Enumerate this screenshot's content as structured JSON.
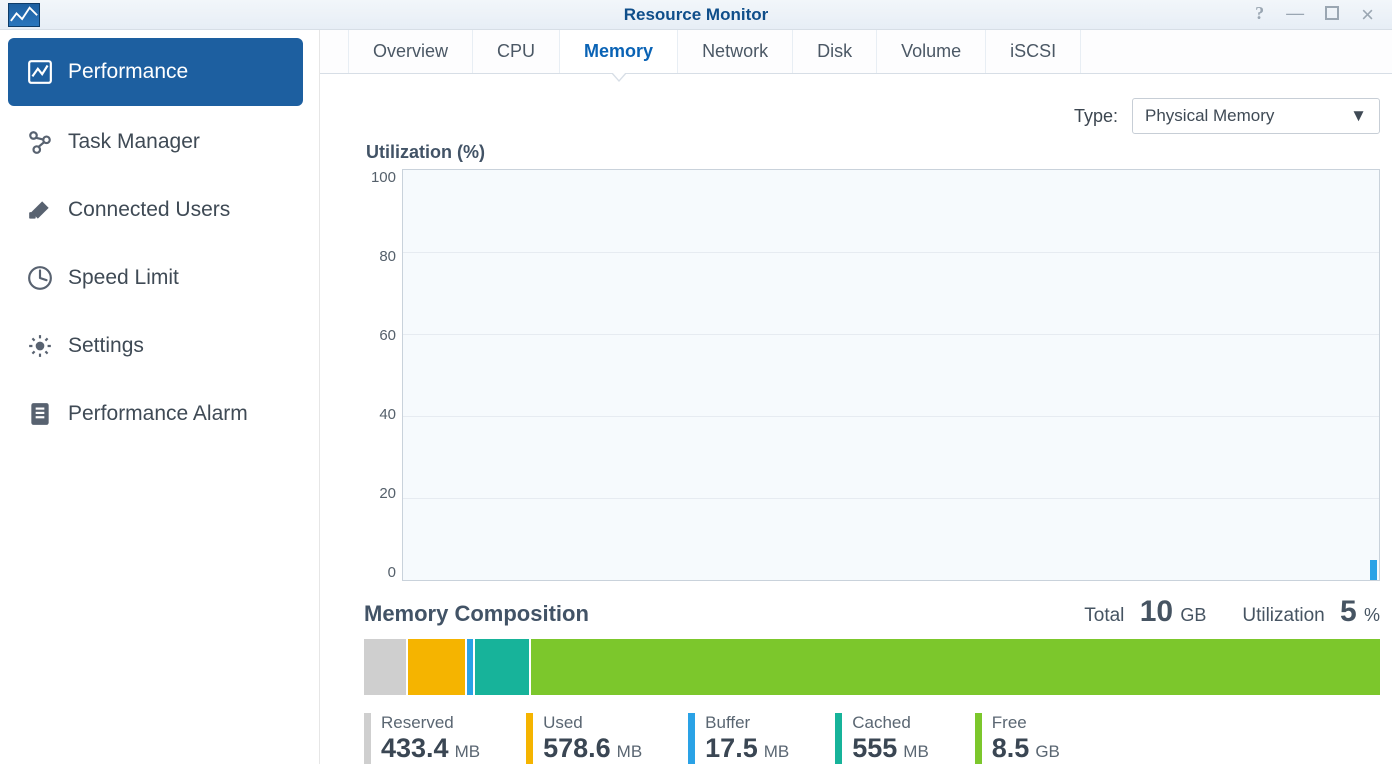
{
  "window": {
    "title": "Resource Monitor"
  },
  "sidebar": {
    "items": [
      {
        "label": "Performance",
        "selected": true
      },
      {
        "label": "Task Manager",
        "selected": false
      },
      {
        "label": "Connected Users",
        "selected": false
      },
      {
        "label": "Speed Limit",
        "selected": false
      },
      {
        "label": "Settings",
        "selected": false
      },
      {
        "label": "Performance Alarm",
        "selected": false
      }
    ]
  },
  "tabs": {
    "items": [
      {
        "label": "Overview",
        "active": false
      },
      {
        "label": "CPU",
        "active": false
      },
      {
        "label": "Memory",
        "active": true
      },
      {
        "label": "Network",
        "active": false
      },
      {
        "label": "Disk",
        "active": false
      },
      {
        "label": "Volume",
        "active": false
      },
      {
        "label": "iSCSI",
        "active": false
      }
    ]
  },
  "type_selector": {
    "label": "Type:",
    "value": "Physical Memory"
  },
  "util_chart": {
    "title": "Utilization (%)",
    "type": "line",
    "ylim": [
      0,
      100
    ],
    "yticks": [
      100,
      80,
      60,
      40,
      20,
      0
    ],
    "background_color": "#f6fafd",
    "grid_color": "#e6ebf1",
    "border_color": "#c9d2db",
    "series_color": "#2aa2e6",
    "last_value_pct": 5
  },
  "composition": {
    "title": "Memory Composition",
    "total_label": "Total",
    "total_value": "10",
    "total_unit": "GB",
    "util_label": "Utilization",
    "util_value": "5",
    "util_unit": "%",
    "segments": [
      {
        "key": "reserved",
        "label": "Reserved",
        "value": "433.4",
        "unit": "MB",
        "color": "#cfcfcf",
        "mb": 433.4
      },
      {
        "key": "used",
        "label": "Used",
        "value": "578.6",
        "unit": "MB",
        "color": "#f5b400",
        "mb": 578.6
      },
      {
        "key": "buffer",
        "label": "Buffer",
        "value": "17.5",
        "unit": "MB",
        "color": "#2aa2e6",
        "mb": 17.5
      },
      {
        "key": "cached",
        "label": "Cached",
        "value": "555",
        "unit": "MB",
        "color": "#17b39a",
        "mb": 555.0
      },
      {
        "key": "free",
        "label": "Free",
        "value": "8.5",
        "unit": "GB",
        "color": "#7cc72c",
        "mb": 8704.0
      }
    ]
  }
}
